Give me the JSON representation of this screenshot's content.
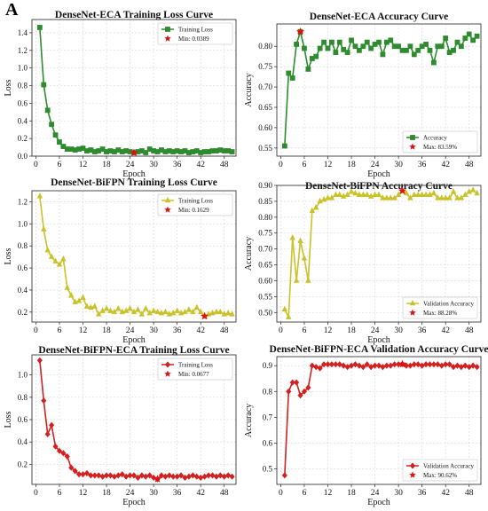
{
  "figure": {
    "panel_label": "A"
  },
  "chart_data": [
    {
      "type": "line",
      "title": "DenseNet-ECA Training Loss Curve",
      "xlabel": "Epoch",
      "ylabel": "Loss",
      "xlim": [
        -1,
        51
      ],
      "ylim": [
        0,
        1.55
      ],
      "xticks": [
        0,
        6,
        12,
        18,
        24,
        30,
        36,
        42,
        48
      ],
      "yticks": [
        0.0,
        0.2,
        0.4,
        0.6,
        0.8,
        1.0,
        1.2,
        1.4
      ],
      "ytick_decimals": 1,
      "grid": true,
      "legend_position": "top-right",
      "color": "#2e8b2e",
      "marker": "square",
      "series": [
        {
          "name": "Training Loss",
          "x": [
            1,
            2,
            3,
            4,
            5,
            6,
            7,
            8,
            9,
            10,
            11,
            12,
            13,
            14,
            15,
            16,
            17,
            18,
            19,
            20,
            21,
            22,
            23,
            24,
            25,
            26,
            27,
            28,
            29,
            30,
            31,
            32,
            33,
            34,
            35,
            36,
            37,
            38,
            39,
            40,
            41,
            42,
            43,
            44,
            45,
            46,
            47,
            48,
            49,
            50
          ],
          "values": [
            1.46,
            0.81,
            0.52,
            0.36,
            0.24,
            0.16,
            0.11,
            0.08,
            0.08,
            0.07,
            0.08,
            0.09,
            0.06,
            0.07,
            0.05,
            0.06,
            0.08,
            0.05,
            0.06,
            0.05,
            0.07,
            0.05,
            0.06,
            0.05,
            0.04,
            0.05,
            0.06,
            0.04,
            0.08,
            0.06,
            0.05,
            0.07,
            0.05,
            0.06,
            0.05,
            0.06,
            0.05,
            0.06,
            0.04,
            0.05,
            0.06,
            0.04,
            0.05,
            0.05,
            0.06,
            0.06,
            0.07,
            0.06,
            0.06,
            0.05
          ]
        }
      ],
      "highlight": {
        "label": "Min: 0.0389",
        "x": 25,
        "value": 0.0389,
        "kind": "min"
      }
    },
    {
      "type": "line",
      "title": "DenseNet-ECA Accuracy Curve",
      "xlabel": "Epoch",
      "ylabel": "Accuracy",
      "xlim": [
        -1,
        51
      ],
      "ylim": [
        0.53,
        0.855
      ],
      "xticks": [
        0,
        6,
        12,
        18,
        24,
        30,
        36,
        42,
        48
      ],
      "yticks": [
        0.55,
        0.6,
        0.65,
        0.7,
        0.75,
        0.8
      ],
      "ytick_decimals": 2,
      "grid": true,
      "legend_position": "bottom-right",
      "color": "#2e8b2e",
      "marker": "square",
      "series": [
        {
          "name": "Accuracy",
          "x": [
            1,
            2,
            3,
            4,
            5,
            6,
            7,
            8,
            9,
            10,
            11,
            12,
            13,
            14,
            15,
            16,
            17,
            18,
            19,
            20,
            21,
            22,
            23,
            24,
            25,
            26,
            27,
            28,
            29,
            30,
            31,
            32,
            33,
            34,
            35,
            36,
            37,
            38,
            39,
            40,
            41,
            42,
            43,
            44,
            45,
            46,
            47,
            48,
            49,
            50
          ],
          "values": [
            0.555,
            0.734,
            0.722,
            0.805,
            0.836,
            0.795,
            0.744,
            0.77,
            0.775,
            0.795,
            0.81,
            0.795,
            0.81,
            0.785,
            0.81,
            0.792,
            0.785,
            0.815,
            0.8,
            0.79,
            0.8,
            0.81,
            0.795,
            0.805,
            0.81,
            0.78,
            0.81,
            0.815,
            0.8,
            0.8,
            0.79,
            0.79,
            0.8,
            0.78,
            0.79,
            0.8,
            0.805,
            0.79,
            0.76,
            0.8,
            0.8,
            0.82,
            0.785,
            0.79,
            0.81,
            0.8,
            0.82,
            0.83,
            0.815,
            0.825
          ]
        }
      ],
      "highlight": {
        "label": "Max: 83.59%",
        "x": 5,
        "value": 0.8359,
        "kind": "max"
      }
    },
    {
      "type": "line",
      "title": "DenseNet-BiFPN Training Loss Curve",
      "xlabel": "Epoch",
      "ylabel": "Loss",
      "xlim": [
        -1,
        51
      ],
      "ylim": [
        0.11,
        1.3
      ],
      "xticks": [
        0,
        6,
        12,
        18,
        24,
        30,
        36,
        42,
        48
      ],
      "yticks": [
        0.2,
        0.4,
        0.6,
        0.8,
        1.0,
        1.2
      ],
      "ytick_decimals": 1,
      "grid": true,
      "legend_position": "top-right",
      "color": "#c9c22a",
      "marker": "triangle",
      "series": [
        {
          "name": "Training Loss",
          "x": [
            1,
            2,
            3,
            4,
            5,
            6,
            7,
            8,
            9,
            10,
            11,
            12,
            13,
            14,
            15,
            16,
            17,
            18,
            19,
            20,
            21,
            22,
            23,
            24,
            25,
            26,
            27,
            28,
            29,
            30,
            31,
            32,
            33,
            34,
            35,
            36,
            37,
            38,
            39,
            40,
            41,
            42,
            43,
            44,
            45,
            46,
            47,
            48,
            49,
            50
          ],
          "values": [
            1.25,
            0.95,
            0.76,
            0.7,
            0.66,
            0.63,
            0.68,
            0.42,
            0.35,
            0.29,
            0.3,
            0.33,
            0.25,
            0.24,
            0.25,
            0.18,
            0.21,
            0.23,
            0.21,
            0.2,
            0.23,
            0.2,
            0.21,
            0.23,
            0.2,
            0.22,
            0.18,
            0.23,
            0.19,
            0.21,
            0.2,
            0.19,
            0.2,
            0.18,
            0.19,
            0.21,
            0.19,
            0.2,
            0.22,
            0.2,
            0.24,
            0.2,
            0.1629,
            0.18,
            0.19,
            0.2,
            0.2,
            0.18,
            0.19,
            0.18
          ]
        }
      ],
      "highlight": {
        "label": "Min: 0.1629",
        "x": 43,
        "value": 0.1629,
        "kind": "min"
      }
    },
    {
      "type": "line",
      "title": "DenseNet-BiFPN Accuracy Curve",
      "xlabel": "Epoch",
      "ylabel": "Accuracy",
      "xlim": [
        -1,
        51
      ],
      "ylim": [
        0.47,
        0.9
      ],
      "xticks": [
        0,
        6,
        12,
        18,
        24,
        30,
        36,
        42,
        48
      ],
      "yticks": [
        0.5,
        0.55,
        0.6,
        0.65,
        0.7,
        0.75,
        0.8,
        0.85,
        0.9
      ],
      "ytick_decimals": 2,
      "grid": true,
      "legend_position": "bottom-right",
      "color": "#c9c22a",
      "marker": "triangle",
      "series": [
        {
          "name": "Validation Accuracy",
          "x": [
            1,
            2,
            3,
            4,
            5,
            6,
            7,
            8,
            9,
            10,
            11,
            12,
            13,
            14,
            15,
            16,
            17,
            18,
            19,
            20,
            21,
            22,
            23,
            24,
            25,
            26,
            27,
            28,
            29,
            30,
            31,
            32,
            33,
            34,
            35,
            36,
            37,
            38,
            39,
            40,
            41,
            42,
            43,
            44,
            45,
            46,
            47,
            48,
            49,
            50
          ],
          "values": [
            0.51,
            0.485,
            0.735,
            0.6,
            0.725,
            0.67,
            0.6,
            0.82,
            0.83,
            0.85,
            0.855,
            0.86,
            0.86,
            0.87,
            0.87,
            0.865,
            0.87,
            0.88,
            0.875,
            0.87,
            0.87,
            0.87,
            0.865,
            0.87,
            0.87,
            0.86,
            0.86,
            0.86,
            0.86,
            0.87,
            0.8828,
            0.875,
            0.86,
            0.87,
            0.87,
            0.87,
            0.87,
            0.87,
            0.875,
            0.86,
            0.86,
            0.86,
            0.86,
            0.88,
            0.86,
            0.86,
            0.87,
            0.88,
            0.885,
            0.875
          ]
        }
      ],
      "highlight": {
        "label": "Max: 88.28%",
        "x": 31,
        "value": 0.8828,
        "kind": "max"
      }
    },
    {
      "type": "line",
      "title": "DenseNet-BiFPN-ECA Training Loss Curve",
      "xlabel": "Epoch",
      "ylabel": "Loss",
      "xlim": [
        -1,
        51
      ],
      "ylim": [
        0.02,
        1.18
      ],
      "xticks": [
        0,
        6,
        12,
        18,
        24,
        30,
        36,
        42,
        48
      ],
      "yticks": [
        0.2,
        0.4,
        0.6,
        0.8,
        1.0
      ],
      "ytick_decimals": 1,
      "grid": true,
      "legend_position": "top-right",
      "color": "#d42020",
      "marker": "diamond",
      "series": [
        {
          "name": "Training Loss",
          "x": [
            1,
            2,
            3,
            4,
            5,
            6,
            7,
            8,
            9,
            10,
            11,
            12,
            13,
            14,
            15,
            16,
            17,
            18,
            19,
            20,
            21,
            22,
            23,
            24,
            25,
            26,
            27,
            28,
            29,
            30,
            31,
            32,
            33,
            34,
            35,
            36,
            37,
            38,
            39,
            40,
            41,
            42,
            43,
            44,
            45,
            46,
            47,
            48,
            49,
            50
          ],
          "values": [
            1.13,
            0.77,
            0.47,
            0.55,
            0.36,
            0.32,
            0.3,
            0.27,
            0.17,
            0.14,
            0.11,
            0.11,
            0.12,
            0.1,
            0.1,
            0.1,
            0.09,
            0.1,
            0.1,
            0.09,
            0.1,
            0.11,
            0.09,
            0.1,
            0.1,
            0.08,
            0.1,
            0.09,
            0.1,
            0.08,
            0.0677,
            0.1,
            0.09,
            0.1,
            0.09,
            0.09,
            0.1,
            0.08,
            0.09,
            0.1,
            0.09,
            0.08,
            0.09,
            0.1,
            0.1,
            0.09,
            0.1,
            0.09,
            0.1,
            0.09
          ]
        }
      ],
      "highlight": {
        "label": "Min: 0.0677",
        "x": 31,
        "value": 0.0677,
        "kind": "min"
      }
    },
    {
      "type": "line",
      "title": "DenseNet-BiFPN-ECA Validation Accuracy Curve",
      "xlabel": "Epoch",
      "ylabel": "Accuracy",
      "xlim": [
        -1,
        51
      ],
      "ylim": [
        0.44,
        0.935
      ],
      "xticks": [
        0,
        6,
        12,
        18,
        24,
        30,
        36,
        42,
        48
      ],
      "yticks": [
        0.5,
        0.6,
        0.7,
        0.8,
        0.9
      ],
      "ytick_decimals": 1,
      "grid": true,
      "legend_position": "bottom-right",
      "color": "#d42020",
      "marker": "diamond",
      "series": [
        {
          "name": "Validation Accuracy",
          "x": [
            1,
            2,
            3,
            4,
            5,
            6,
            7,
            8,
            9,
            10,
            11,
            12,
            13,
            14,
            15,
            16,
            17,
            18,
            19,
            20,
            21,
            22,
            23,
            24,
            25,
            26,
            27,
            28,
            29,
            30,
            31,
            32,
            33,
            34,
            35,
            36,
            37,
            38,
            39,
            40,
            41,
            42,
            43,
            44,
            45,
            46,
            47,
            48,
            49,
            50
          ],
          "values": [
            0.475,
            0.8,
            0.835,
            0.835,
            0.785,
            0.8,
            0.815,
            0.9,
            0.895,
            0.89,
            0.905,
            0.905,
            0.905,
            0.905,
            0.905,
            0.9,
            0.895,
            0.9,
            0.905,
            0.9,
            0.895,
            0.905,
            0.895,
            0.9,
            0.9,
            0.895,
            0.9,
            0.9,
            0.905,
            0.905,
            0.9062,
            0.9,
            0.9,
            0.905,
            0.905,
            0.9,
            0.905,
            0.905,
            0.905,
            0.905,
            0.9,
            0.905,
            0.905,
            0.895,
            0.9,
            0.895,
            0.9,
            0.895,
            0.9,
            0.895
          ]
        }
      ],
      "highlight": {
        "label": "Max: 90.62%",
        "x": 31,
        "value": 0.9062,
        "kind": "max"
      }
    }
  ]
}
